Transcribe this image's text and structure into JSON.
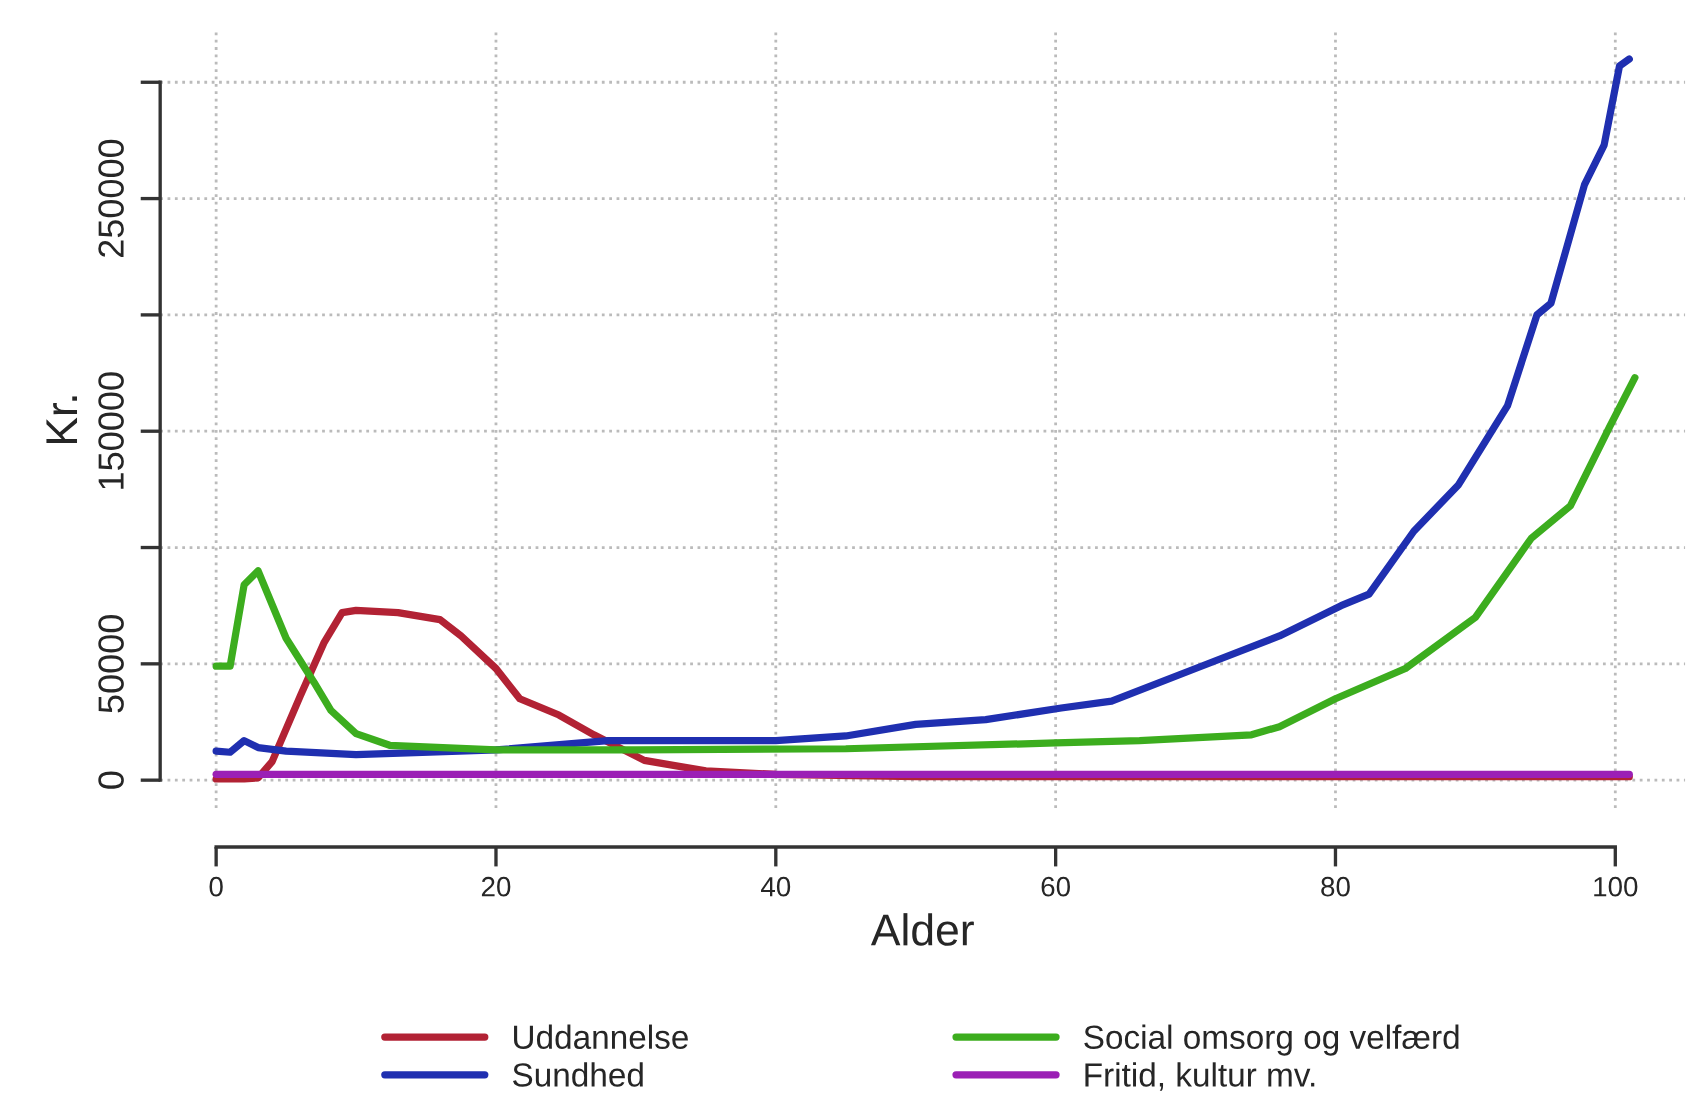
{
  "chart_data": {
    "type": "line",
    "xlabel": "Alder",
    "ylabel": "Kr.",
    "xlim": [
      -4,
      105
    ],
    "ylim": [
      -12000,
      322000
    ],
    "xticks": [
      0,
      20,
      40,
      60,
      80,
      100
    ],
    "yticks": [
      0,
      50000,
      {
        "value": 100000,
        "label": null
      },
      150000,
      {
        "value": 200000,
        "label": null
      },
      250000,
      {
        "value": 300000,
        "label": null
      }
    ],
    "grid": true,
    "legend": "bottom",
    "line_style": "solid",
    "marker": "none",
    "series": [
      {
        "name": "Uddannelse",
        "color": "#b22234",
        "x": [
          0,
          2,
          3,
          4,
          6,
          7.7,
          9,
          10,
          13,
          16,
          17.5,
          20,
          21.7,
          24.5,
          27,
          30.6,
          35,
          40,
          50,
          60,
          70,
          80,
          90,
          101
        ],
        "values": [
          500,
          500,
          1000,
          8000,
          36000,
          59000,
          72000,
          73000,
          72000,
          69000,
          62000,
          48000,
          35000,
          28000,
          19500,
          8500,
          4000,
          2500,
          1500,
          1500,
          1500,
          1500,
          1500,
          1500
        ]
      },
      {
        "name": "Sundhed",
        "color": "#1f2fb0",
        "x": [
          0,
          1,
          2,
          3,
          5,
          10,
          20,
          28,
          40,
          45,
          50,
          55,
          60.4,
          64,
          70,
          76,
          80.4,
          82.4,
          85.6,
          88.8,
          92.3,
          94.4,
          95.4,
          97.8,
          99.2,
          100.3,
          101
        ],
        "values": [
          12500,
          12000,
          17000,
          14000,
          12500,
          11000,
          13000,
          17000,
          17000,
          19000,
          24000,
          26000,
          31000,
          34000,
          48000,
          62000,
          75000,
          80000,
          107000,
          127000,
          161000,
          200000,
          205000,
          256000,
          273000,
          307000,
          310000
        ]
      },
      {
        "name": "Social omsorg og velfærd",
        "color": "#3cad1e",
        "x": [
          0,
          1,
          2,
          3,
          5,
          7,
          8.2,
          10,
          12.4,
          20,
          30,
          45,
          60,
          66,
          74,
          76,
          80,
          85,
          90,
          94,
          96.8,
          99.6,
          101.4
        ],
        "values": [
          49000,
          49000,
          84000,
          90000,
          61000,
          42000,
          30000,
          20000,
          15000,
          13000,
          13000,
          13500,
          16000,
          17000,
          19500,
          23000,
          35000,
          48000,
          70000,
          104000,
          118000,
          152000,
          173000
        ]
      },
      {
        "name": "Fritid, kultur mv.",
        "color": "#9b1fb5",
        "x": [
          0,
          20,
          40,
          60,
          80,
          101
        ],
        "values": [
          2500,
          2500,
          2500,
          2500,
          2500,
          2500
        ]
      }
    ]
  }
}
